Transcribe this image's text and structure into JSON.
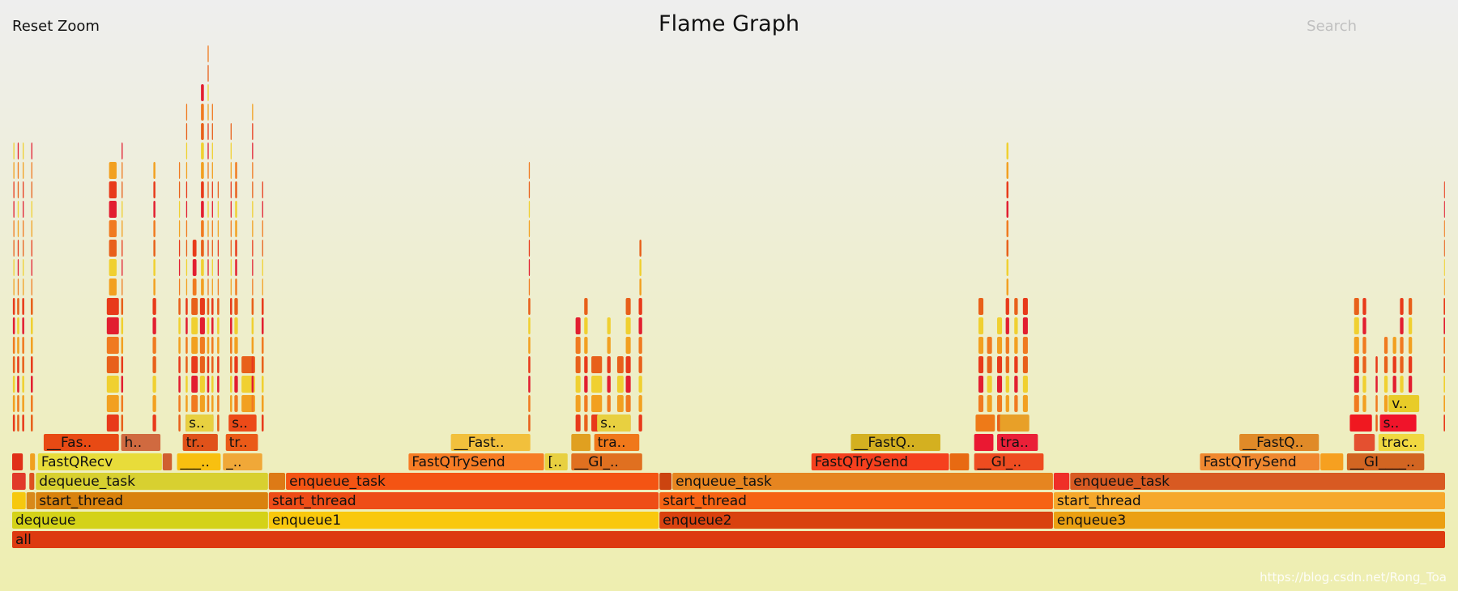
{
  "header": {
    "reset_zoom_label": "Reset Zoom",
    "title": "Flame Graph",
    "search_label": "Search"
  },
  "watermark": "https://blog.csdn.net/Rong_Toa",
  "chart_data": {
    "type": "flamegraph",
    "title": "Flame Graph",
    "x_range": [
      0,
      1
    ],
    "depth_range": [
      0,
      26
    ],
    "frames": [
      {
        "label": "all",
        "x0": 0.0,
        "x1": 1.0,
        "depth": 0,
        "color": "#dd3a10"
      },
      {
        "label": "dequeue",
        "x0": 0.0,
        "x1": 0.179,
        "depth": 1,
        "color": "#d4d218"
      },
      {
        "label": "enqueue1",
        "x0": 0.179,
        "x1": 0.4515,
        "depth": 1,
        "color": "#f9c80d"
      },
      {
        "label": "enqueue2",
        "x0": 0.4515,
        "x1": 0.7265,
        "depth": 1,
        "color": "#d9420f"
      },
      {
        "label": "enqueue3",
        "x0": 0.7265,
        "x1": 1.0,
        "depth": 1,
        "color": "#eba012"
      },
      {
        "label": "",
        "x0": 0.0,
        "x1": 0.01,
        "depth": 2,
        "color": "#f6c80e"
      },
      {
        "label": "",
        "x0": 0.01,
        "x1": 0.0165,
        "depth": 2,
        "color": "#d8891a"
      },
      {
        "label": "start_thread",
        "x0": 0.0165,
        "x1": 0.179,
        "depth": 2,
        "color": "#d9820e"
      },
      {
        "label": "start_thread",
        "x0": 0.179,
        "x1": 0.4515,
        "depth": 2,
        "color": "#ee4d17"
      },
      {
        "label": "start_thread",
        "x0": 0.4515,
        "x1": 0.7265,
        "depth": 2,
        "color": "#f66314"
      },
      {
        "label": "start_thread",
        "x0": 0.7265,
        "x1": 1.0,
        "depth": 2,
        "color": "#f6a82b"
      },
      {
        "label": "",
        "x0": 0.0,
        "x1": 0.01,
        "depth": 3,
        "color": "#e13a2a"
      },
      {
        "label": "",
        "x0": 0.012,
        "x1": 0.016,
        "depth": 3,
        "color": "#dd5020"
      },
      {
        "label": "dequeue_task",
        "x0": 0.0165,
        "x1": 0.179,
        "depth": 3,
        "color": "#d8d030"
      },
      {
        "label": "",
        "x0": 0.179,
        "x1": 0.191,
        "depth": 3,
        "color": "#dd7a16"
      },
      {
        "label": "enqueue_task",
        "x0": 0.191,
        "x1": 0.4515,
        "depth": 3,
        "color": "#f45413"
      },
      {
        "label": "",
        "x0": 0.4515,
        "x1": 0.4605,
        "depth": 3,
        "color": "#cc4410"
      },
      {
        "label": "enqueue_task",
        "x0": 0.4605,
        "x1": 0.7265,
        "depth": 3,
        "color": "#e68520"
      },
      {
        "label": "",
        "x0": 0.7265,
        "x1": 0.738,
        "depth": 3,
        "color": "#ef2f28"
      },
      {
        "label": "enqueue_task",
        "x0": 0.738,
        "x1": 1.0,
        "depth": 3,
        "color": "#d85a22"
      },
      {
        "label": "",
        "x0": 0.0,
        "x1": 0.008,
        "depth": 4,
        "color": "#e03018"
      },
      {
        "label": "",
        "x0": 0.0125,
        "x1": 0.0165,
        "depth": 4,
        "color": "#f0a020"
      },
      {
        "label": "FastQRecv",
        "x0": 0.018,
        "x1": 0.105,
        "depth": 4,
        "color": "#e8dc3a"
      },
      {
        "label": "",
        "x0": 0.105,
        "x1": 0.112,
        "depth": 4,
        "color": "#d06030"
      },
      {
        "label": "___..",
        "x0": 0.115,
        "x1": 0.146,
        "depth": 4,
        "color": "#f8c010"
      },
      {
        "label": "_..",
        "x0": 0.147,
        "x1": 0.175,
        "depth": 4,
        "color": "#f0a838"
      },
      {
        "label": "FastQTrySend",
        "x0": 0.2765,
        "x1": 0.3715,
        "depth": 4,
        "color": "#f77c25"
      },
      {
        "label": "[..",
        "x0": 0.3715,
        "x1": 0.388,
        "depth": 4,
        "color": "#e8d040"
      },
      {
        "label": "__GI_..",
        "x0": 0.39,
        "x1": 0.44,
        "depth": 4,
        "color": "#e07020"
      },
      {
        "label": "FastQTrySend",
        "x0": 0.5575,
        "x1": 0.654,
        "depth": 4,
        "color": "#f5401e"
      },
      {
        "label": "",
        "x0": 0.654,
        "x1": 0.668,
        "depth": 4,
        "color": "#e86a12"
      },
      {
        "label": "__GI_..",
        "x0": 0.671,
        "x1": 0.72,
        "depth": 4,
        "color": "#ee4c20"
      },
      {
        "label": "FastQTrySend",
        "x0": 0.8285,
        "x1": 0.9125,
        "depth": 4,
        "color": "#f08830"
      },
      {
        "label": "",
        "x0": 0.9125,
        "x1": 0.929,
        "depth": 4,
        "color": "#f6a020"
      },
      {
        "label": "__GI____..",
        "x0": 0.931,
        "x1": 0.9855,
        "depth": 4,
        "color": "#d26522"
      },
      {
        "label": "__Fas..",
        "x0": 0.022,
        "x1": 0.075,
        "depth": 5,
        "color": "#e84a14"
      },
      {
        "label": "h..",
        "x0": 0.076,
        "x1": 0.104,
        "depth": 5,
        "color": "#d06a40"
      },
      {
        "label": "tr..",
        "x0": 0.119,
        "x1": 0.144,
        "depth": 5,
        "color": "#e0521a"
      },
      {
        "label": "tr..",
        "x0": 0.149,
        "x1": 0.172,
        "depth": 5,
        "color": "#ea5a18"
      },
      {
        "label": "__Fast..",
        "x0": 0.306,
        "x1": 0.362,
        "depth": 5,
        "color": "#f2c03c"
      },
      {
        "label": "",
        "x0": 0.39,
        "x1": 0.404,
        "depth": 5,
        "color": "#e0a020"
      },
      {
        "label": "tra..",
        "x0": 0.406,
        "x1": 0.438,
        "depth": 5,
        "color": "#f0781a"
      },
      {
        "label": "__FastQ..",
        "x0": 0.585,
        "x1": 0.648,
        "depth": 5,
        "color": "#d4b020"
      },
      {
        "label": "",
        "x0": 0.671,
        "x1": 0.685,
        "depth": 5,
        "color": "#ea1832"
      },
      {
        "label": "tra..",
        "x0": 0.687,
        "x1": 0.716,
        "depth": 5,
        "color": "#ea2038"
      },
      {
        "label": "__FastQ..",
        "x0": 0.856,
        "x1": 0.912,
        "depth": 5,
        "color": "#e08a28"
      },
      {
        "label": "",
        "x0": 0.936,
        "x1": 0.951,
        "depth": 5,
        "color": "#e45030"
      },
      {
        "label": "trac..",
        "x0": 0.953,
        "x1": 0.9855,
        "depth": 5,
        "color": "#f0d840"
      },
      {
        "label": "s..",
        "x0": 0.121,
        "x1": 0.141,
        "depth": 6,
        "color": "#e8d040"
      },
      {
        "label": "s..",
        "x0": 0.151,
        "x1": 0.171,
        "depth": 6,
        "color": "#ec4a18"
      },
      {
        "label": "s..",
        "x0": 0.408,
        "x1": 0.432,
        "depth": 6,
        "color": "#e8d040"
      },
      {
        "label": "s..",
        "x0": 0.954,
        "x1": 0.98,
        "depth": 6,
        "color": "#f0142a"
      },
      {
        "label": "v..",
        "x0": 0.96,
        "x1": 0.982,
        "depth": 7,
        "color": "#e8cc28"
      },
      {
        "label": "",
        "x0": 0.933,
        "x1": 0.949,
        "depth": 6,
        "color": "#f01820"
      },
      {
        "label": "",
        "x0": 0.689,
        "x1": 0.71,
        "depth": 6,
        "color": "#e8a028"
      },
      {
        "label": "",
        "x0": 0.672,
        "x1": 0.686,
        "depth": 6,
        "color": "#ee7a18"
      }
    ],
    "towers": [
      {
        "x0": 0.0005,
        "x1": 0.0025,
        "top": 20
      },
      {
        "x0": 0.0035,
        "x1": 0.0055,
        "top": 20
      },
      {
        "x0": 0.007,
        "x1": 0.009,
        "top": 20
      },
      {
        "x0": 0.013,
        "x1": 0.015,
        "top": 20
      },
      {
        "x0": 0.066,
        "x1": 0.075,
        "top": 19
      },
      {
        "x0": 0.076,
        "x1": 0.078,
        "top": 20
      },
      {
        "x0": 0.098,
        "x1": 0.101,
        "top": 19
      },
      {
        "x0": 0.116,
        "x1": 0.118,
        "top": 19
      },
      {
        "x0": 0.121,
        "x1": 0.123,
        "top": 22
      },
      {
        "x0": 0.125,
        "x1": 0.13,
        "top": 15
      },
      {
        "x0": 0.131,
        "x1": 0.135,
        "top": 23
      },
      {
        "x0": 0.136,
        "x1": 0.138,
        "top": 25
      },
      {
        "x0": 0.139,
        "x1": 0.141,
        "top": 22
      },
      {
        "x0": 0.143,
        "x1": 0.145,
        "top": 18
      },
      {
        "x0": 0.152,
        "x1": 0.154,
        "top": 21
      },
      {
        "x0": 0.155,
        "x1": 0.158,
        "top": 19
      },
      {
        "x0": 0.16,
        "x1": 0.17,
        "top": 9
      },
      {
        "x0": 0.167,
        "x1": 0.169,
        "top": 22
      },
      {
        "x0": 0.174,
        "x1": 0.176,
        "top": 18
      },
      {
        "x0": 0.36,
        "x1": 0.362,
        "top": 19
      },
      {
        "x0": 0.393,
        "x1": 0.397,
        "top": 11
      },
      {
        "x0": 0.399,
        "x1": 0.402,
        "top": 12
      },
      {
        "x0": 0.404,
        "x1": 0.412,
        "top": 9
      },
      {
        "x0": 0.415,
        "x1": 0.418,
        "top": 11
      },
      {
        "x0": 0.422,
        "x1": 0.427,
        "top": 9
      },
      {
        "x0": 0.428,
        "x1": 0.432,
        "top": 12
      },
      {
        "x0": 0.437,
        "x1": 0.44,
        "top": 15
      },
      {
        "x0": 0.674,
        "x1": 0.678,
        "top": 12
      },
      {
        "x0": 0.68,
        "x1": 0.684,
        "top": 10
      },
      {
        "x0": 0.687,
        "x1": 0.691,
        "top": 11
      },
      {
        "x0": 0.693,
        "x1": 0.696,
        "top": 20
      },
      {
        "x0": 0.699,
        "x1": 0.702,
        "top": 12
      },
      {
        "x0": 0.705,
        "x1": 0.709,
        "top": 12
      },
      {
        "x0": 0.936,
        "x1": 0.94,
        "top": 12
      },
      {
        "x0": 0.942,
        "x1": 0.945,
        "top": 12
      },
      {
        "x0": 0.951,
        "x1": 0.953,
        "top": 9
      },
      {
        "x0": 0.957,
        "x1": 0.96,
        "top": 10
      },
      {
        "x0": 0.963,
        "x1": 0.966,
        "top": 10
      },
      {
        "x0": 0.968,
        "x1": 0.971,
        "top": 12
      },
      {
        "x0": 0.974,
        "x1": 0.977,
        "top": 12
      },
      {
        "x0": 0.9985,
        "x1": 1.0,
        "top": 18
      }
    ]
  }
}
